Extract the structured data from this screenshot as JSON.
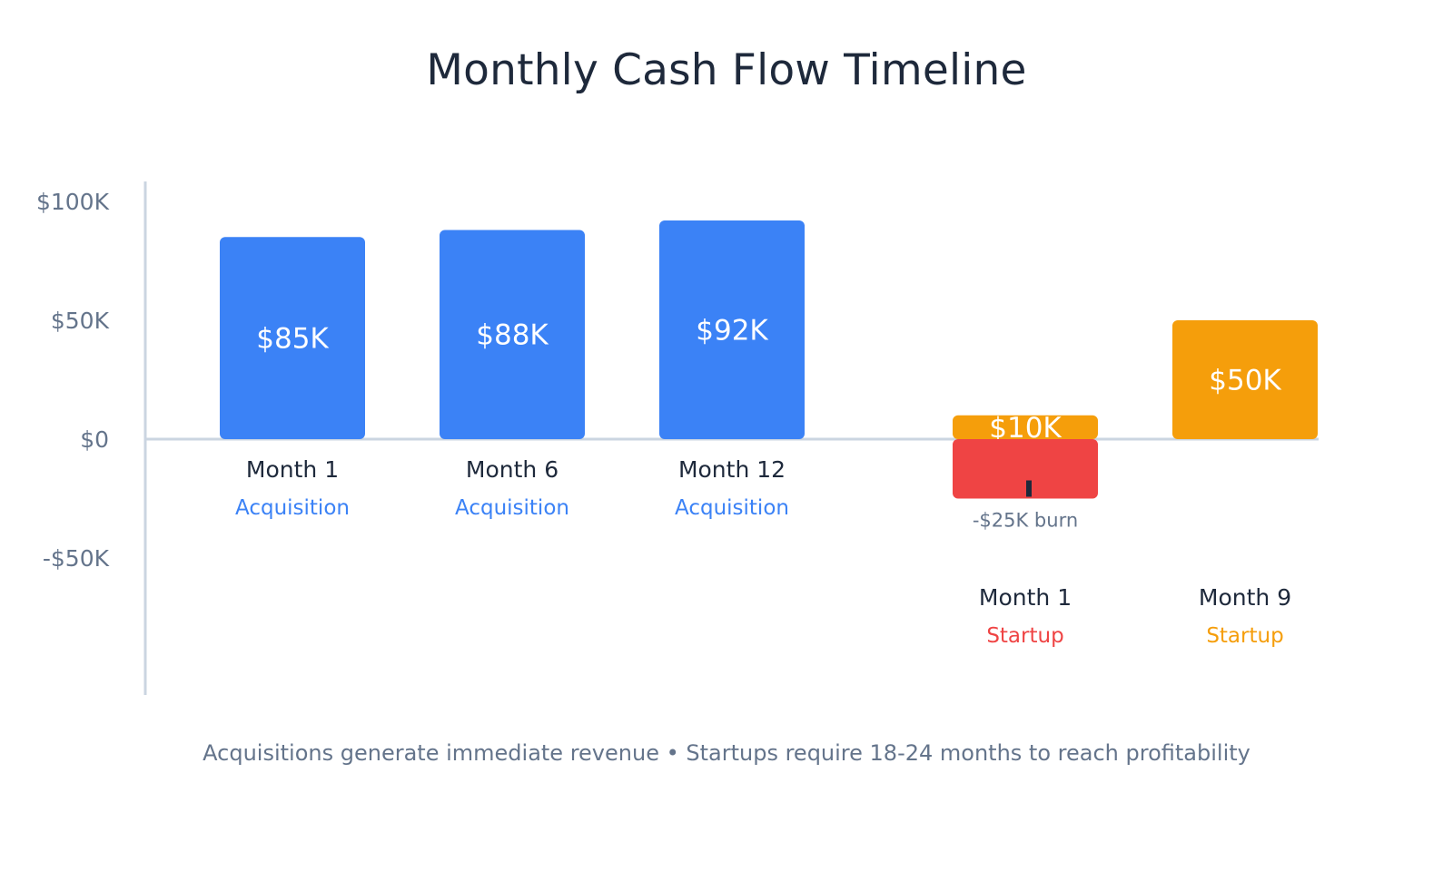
{
  "chart_data": {
    "type": "bar",
    "title": "Monthly Cash Flow Timeline",
    "footnote": "Acquisitions generate immediate revenue • Startups require 18-24 months to reach profitability",
    "ylim": [
      -100000,
      100000
    ],
    "y_ticks": [
      {
        "value": 100000,
        "label": "$100K"
      },
      {
        "value": 50000,
        "label": "$50K"
      },
      {
        "value": 0,
        "label": "$0"
      },
      {
        "value": -50000,
        "label": "-$50K"
      }
    ],
    "grid": false,
    "legend": "none",
    "bars": [
      {
        "month": "Month 1",
        "group": "Acquisition",
        "value": 85000,
        "label": "$85K",
        "color": "#3b82f6",
        "group_color": "#3b82f6"
      },
      {
        "month": "Month 6",
        "group": "Acquisition",
        "value": 88000,
        "label": "$88K",
        "color": "#3b82f6",
        "group_color": "#3b82f6"
      },
      {
        "month": "Month 12",
        "group": "Acquisition",
        "value": 92000,
        "label": "$92K",
        "color": "#3b82f6",
        "group_color": "#3b82f6"
      },
      {
        "month": "Month 1",
        "group": "Startup",
        "value": 10000,
        "label": "$10K",
        "color": "#f59e0b",
        "group_color": "#ef4444",
        "burn": {
          "value": -25000,
          "label": "-$25K burn",
          "color": "#ef4444"
        }
      },
      {
        "month": "Month 9",
        "group": "Startup",
        "value": 50000,
        "label": "$50K",
        "color": "#f59e0b",
        "group_color": "#f59e0b"
      }
    ],
    "colors": {
      "acquisition": "#3b82f6",
      "startup_positive": "#f59e0b",
      "startup_burn": "#ef4444",
      "axis": "#cbd5e1",
      "tick_label": "#64748b",
      "category_label": "#1e293b"
    }
  }
}
